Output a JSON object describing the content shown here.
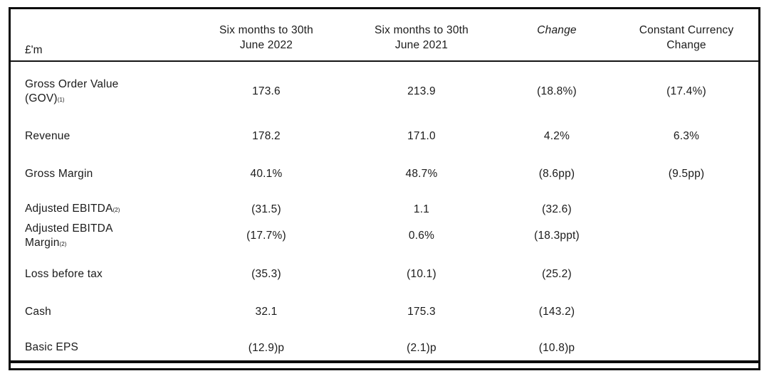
{
  "table": {
    "unit_label": "£'m",
    "columns": [
      "Six months to 30th June 2022",
      "Six months to 30th June 2021",
      "Change",
      "Constant Currency Change"
    ],
    "rows": [
      {
        "label": "Gross Order Value (GOV)",
        "footnote": "(1)",
        "values": [
          "173.6",
          "213.9",
          "(18.8%)",
          "(17.4%)"
        ]
      },
      {
        "label": "Revenue",
        "footnote": "",
        "values": [
          "178.2",
          "171.0",
          "4.2%",
          "6.3%"
        ]
      },
      {
        "label": "Gross Margin",
        "footnote": "",
        "values": [
          "40.1%",
          "48.7%",
          "(8.6pp)",
          "(9.5pp)"
        ]
      },
      {
        "label": "Adjusted EBITDA",
        "footnote": "(2)",
        "values": [
          "(31.5)",
          "1.1",
          "(32.6)",
          ""
        ]
      },
      {
        "label": "Adjusted EBITDA Margin",
        "footnote": "(2)",
        "values": [
          "(17.7%)",
          "0.6%",
          "(18.3ppt)",
          ""
        ]
      },
      {
        "label": "Loss before tax",
        "footnote": "",
        "values": [
          "(35.3)",
          "(10.1)",
          "(25.2)",
          ""
        ]
      },
      {
        "label": "Cash",
        "footnote": "",
        "values": [
          "32.1",
          "175.3",
          "(143.2)",
          ""
        ]
      },
      {
        "label": "Basic EPS",
        "footnote": "",
        "values": [
          "(12.9)p",
          "(2.1)p",
          "(10.8)p",
          ""
        ]
      }
    ]
  }
}
